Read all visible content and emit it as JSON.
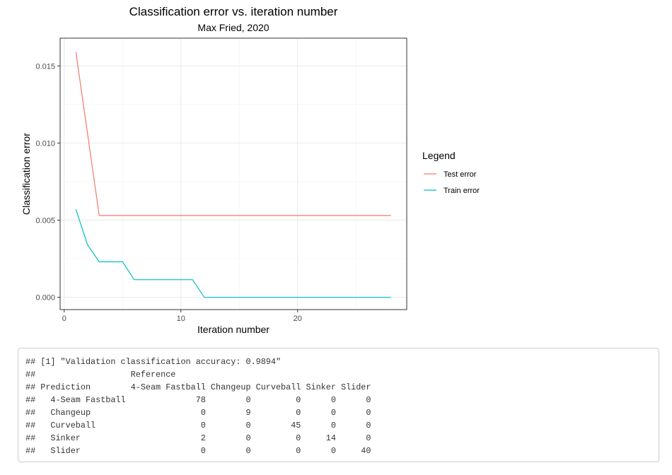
{
  "chart_data": {
    "type": "line",
    "title": "Classification error vs. iteration number",
    "subtitle": "Max Fried, 2020",
    "xlabel": "Iteration number",
    "ylabel": "Classification error",
    "xlim": [
      -0.35,
      29.35
    ],
    "ylim": [
      -0.0008,
      0.0168
    ],
    "xticks": [
      0,
      10,
      20
    ],
    "yticks": [
      0.0,
      0.005,
      0.01,
      0.015
    ],
    "ytick_labels": [
      "0.000",
      "0.005",
      "0.010",
      "0.015"
    ],
    "xtick_labels": [
      "0",
      "10",
      "20"
    ],
    "grid": true,
    "legend": {
      "title": "Legend",
      "position": "right"
    },
    "series": [
      {
        "name": "Test error",
        "color": "#F8766D",
        "x": [
          1,
          2,
          3,
          4,
          5,
          6,
          7,
          8,
          9,
          10,
          11,
          12,
          13,
          14,
          15,
          16,
          17,
          18,
          19,
          20,
          21,
          22,
          23,
          24,
          25,
          26,
          27,
          28
        ],
        "y": [
          0.0159,
          0.0106,
          0.0053,
          0.0053,
          0.0053,
          0.0053,
          0.0053,
          0.0053,
          0.0053,
          0.0053,
          0.0053,
          0.0053,
          0.0053,
          0.0053,
          0.0053,
          0.0053,
          0.0053,
          0.0053,
          0.0053,
          0.0053,
          0.0053,
          0.0053,
          0.0053,
          0.0053,
          0.0053,
          0.0053,
          0.0053,
          0.0053
        ]
      },
      {
        "name": "Train error",
        "color": "#00BFC4",
        "x": [
          1,
          2,
          3,
          4,
          5,
          6,
          7,
          8,
          9,
          10,
          11,
          12,
          13,
          14,
          15,
          16,
          17,
          18,
          19,
          20,
          21,
          22,
          23,
          24,
          25,
          26,
          27,
          28
        ],
        "y": [
          0.0057,
          0.0034,
          0.0023,
          0.0023,
          0.0023,
          0.00114,
          0.00114,
          0.00114,
          0.00114,
          0.00114,
          0.00114,
          0.0,
          0.0,
          0.0,
          0.0,
          0.0,
          0.0,
          0.0,
          0.0,
          0.0,
          0.0,
          0.0,
          0.0,
          0.0,
          0.0,
          0.0,
          0.0,
          0.0
        ]
      }
    ]
  },
  "console": {
    "lines": [
      "## [1] \"Validation classification accuracy: 0.9894\"",
      "##                   Reference",
      "## Prediction        4-Seam Fastball Changeup Curveball Sinker Slider",
      "##   4-Seam Fastball              78        0         0      0      0",
      "##   Changeup                      0        9         0      0      0",
      "##   Curveball                     0        0        45      0      0",
      "##   Sinker                        2        0         0     14      0",
      "##   Slider                        0        0         0      0     40"
    ]
  }
}
